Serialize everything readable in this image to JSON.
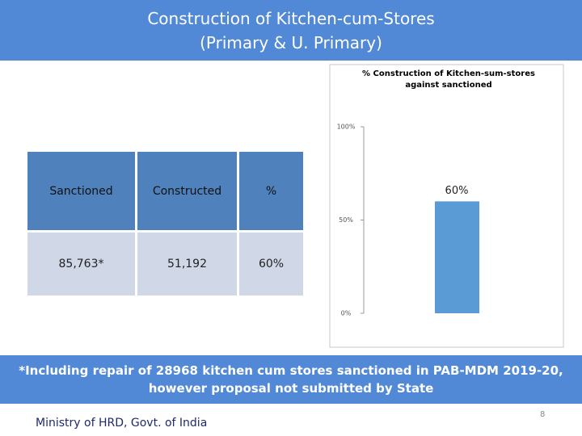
{
  "header": {
    "title": [
      "Construction of Kitchen-cum-Stores",
      "(Primary & U. Primary)"
    ]
  },
  "table": {
    "header": [
      "Sanctioned",
      "Constructed",
      "%"
    ],
    "rows": [
      [
        "85,763*",
        "51,192",
        "60%"
      ]
    ]
  },
  "chart_data": {
    "type": "bar",
    "title": [
      "% Construction of Kitchen-sum-stores",
      "against sanctioned"
    ],
    "categories": [
      null
    ],
    "values": [
      60
    ],
    "value_labels": [
      "60%"
    ],
    "color": "#5b9bd5",
    "ylim": [
      0,
      100
    ],
    "yticks": [
      {
        "value": 0,
        "label": "0%"
      },
      {
        "value": 50,
        "label": "50%"
      },
      {
        "value": 100,
        "label": "100%"
      }
    ]
  },
  "note": [
    "*Including repair of 28968 kitchen cum stores sanctioned in PAB-MDM 2019-20,",
    "however proposal not submitted by State"
  ],
  "footer": {
    "org": "Ministry of HRD, Govt. of India",
    "page": "8"
  }
}
